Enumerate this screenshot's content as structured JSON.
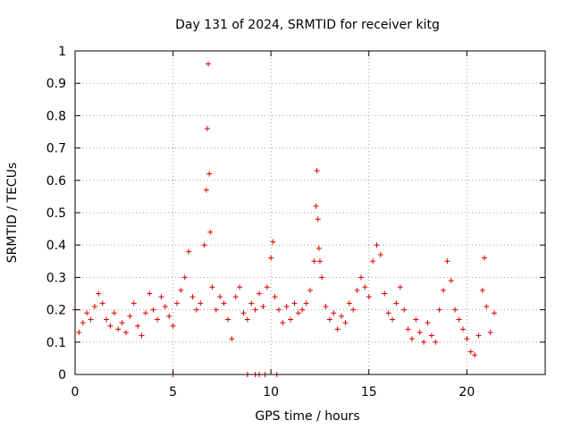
{
  "chart_data": {
    "type": "scatter",
    "title": "Day 131 of 2024, SRMTID for receiver kitg",
    "xlabel": "GPS time / hours",
    "ylabel": "SRMTID / TECUs",
    "xlim": [
      0,
      24
    ],
    "ylim": [
      0,
      1
    ],
    "x_ticks": [
      0,
      5,
      10,
      15,
      20
    ],
    "x_tick_labels": [
      "0",
      "5",
      "10",
      "15",
      "20"
    ],
    "y_ticks": [
      0,
      0.1,
      0.2,
      0.3,
      0.4,
      0.5,
      0.6,
      0.7,
      0.8,
      0.9,
      1
    ],
    "y_tick_labels": [
      "0",
      "0.1",
      "0.2",
      "0.3",
      "0.4",
      "0.5",
      "0.6",
      "0.7",
      "0.8",
      "0.9",
      "1"
    ],
    "grid": true,
    "marker": "+",
    "colors": {
      "series": "#dd0000",
      "grid": "#a0a0a0",
      "axis": "#000000"
    },
    "series": [
      {
        "name": "SRMTID",
        "x": [
          0.0,
          0.2,
          0.4,
          0.6,
          0.8,
          1.0,
          1.2,
          1.4,
          1.6,
          1.8,
          2.0,
          2.2,
          2.4,
          2.6,
          2.8,
          3.0,
          3.2,
          3.4,
          3.6,
          3.8,
          4.0,
          4.2,
          4.4,
          4.6,
          4.8,
          5.0,
          5.2,
          5.4,
          5.6,
          5.8,
          6.0,
          6.2,
          6.4,
          6.6,
          6.7,
          6.75,
          6.8,
          6.85,
          6.9,
          7.0,
          7.2,
          7.4,
          7.6,
          7.8,
          8.0,
          8.2,
          8.4,
          8.6,
          8.8,
          9.0,
          9.2,
          9.4,
          9.6,
          9.8,
          10.0,
          10.1,
          10.2,
          10.4,
          10.6,
          10.8,
          11.0,
          11.2,
          11.4,
          11.6,
          11.8,
          12.0,
          12.2,
          12.3,
          12.35,
          12.4,
          12.45,
          12.5,
          12.6,
          12.8,
          13.0,
          13.2,
          13.4,
          13.6,
          13.8,
          14.0,
          14.2,
          14.4,
          14.6,
          14.8,
          15.0,
          15.2,
          15.4,
          15.6,
          15.8,
          16.0,
          16.2,
          16.4,
          16.6,
          16.8,
          17.0,
          17.2,
          17.4,
          17.6,
          17.8,
          18.0,
          18.2,
          18.4,
          18.6,
          18.8,
          19.0,
          19.2,
          19.4,
          19.6,
          19.8,
          20.0,
          20.2,
          20.4,
          20.6,
          20.8,
          20.9,
          21.0,
          21.2,
          21.4,
          5.0,
          8.8,
          9.2,
          9.4,
          9.7,
          10.3
        ],
        "y": [
          0.2,
          0.13,
          0.16,
          0.19,
          0.17,
          0.21,
          0.25,
          0.22,
          0.17,
          0.15,
          0.19,
          0.14,
          0.16,
          0.13,
          0.18,
          0.22,
          0.15,
          0.12,
          0.19,
          0.25,
          0.2,
          0.17,
          0.24,
          0.21,
          0.18,
          0.15,
          0.22,
          0.26,
          0.3,
          0.38,
          0.24,
          0.2,
          0.22,
          0.4,
          0.57,
          0.76,
          0.96,
          0.62,
          0.44,
          0.27,
          0.2,
          0.24,
          0.22,
          0.17,
          0.11,
          0.24,
          0.27,
          0.19,
          0.17,
          0.22,
          0.2,
          0.25,
          0.21,
          0.27,
          0.36,
          0.41,
          0.24,
          0.2,
          0.16,
          0.21,
          0.17,
          0.22,
          0.19,
          0.2,
          0.22,
          0.26,
          0.35,
          0.52,
          0.63,
          0.48,
          0.39,
          0.35,
          0.3,
          0.21,
          0.17,
          0.19,
          0.14,
          0.18,
          0.16,
          0.22,
          0.2,
          0.26,
          0.3,
          0.27,
          0.24,
          0.35,
          0.4,
          0.37,
          0.25,
          0.19,
          0.17,
          0.22,
          0.27,
          0.2,
          0.14,
          0.11,
          0.17,
          0.13,
          0.1,
          0.16,
          0.12,
          0.1,
          0.2,
          0.26,
          0.35,
          0.29,
          0.2,
          0.17,
          0.14,
          0.11,
          0.07,
          0.06,
          0.12,
          0.26,
          0.36,
          0.21,
          0.13,
          0.19,
          0.0,
          0.0,
          0.0,
          0.0,
          0.0,
          0.0
        ]
      }
    ]
  }
}
